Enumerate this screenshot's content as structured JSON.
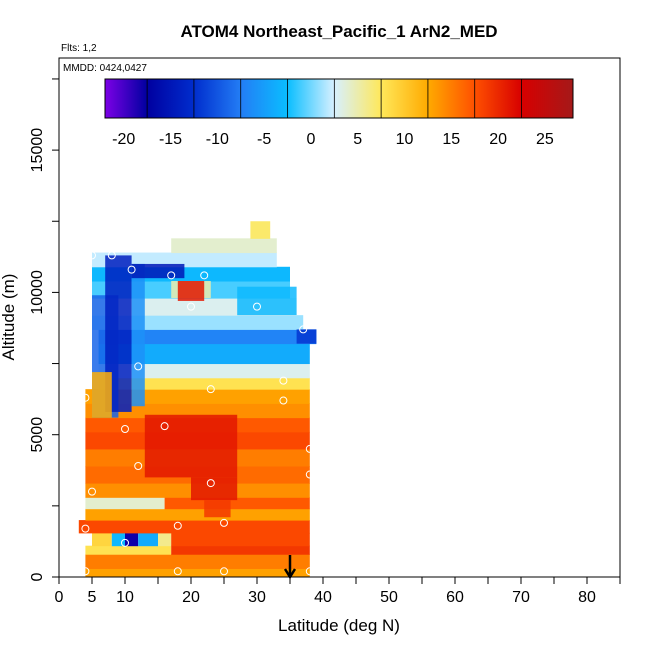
{
  "chart_data": {
    "type": "heatmap",
    "title": "ATOM4 Northeast_Pacific_1 ArN2_MED",
    "flights_label": "Flts: 1,2",
    "dates_label": "MMDD: 0424,0427",
    "xlabel": "Latitude (deg N)",
    "ylabel": "Altitude (m)",
    "xlim": [
      0,
      85
    ],
    "ylim": [
      0,
      17500
    ],
    "x_ticks": [
      0,
      5,
      10,
      20,
      30,
      40,
      50,
      60,
      70,
      80
    ],
    "y_ticks": [
      0,
      5000,
      10000,
      15000
    ],
    "colorbar": {
      "min": -22,
      "max": 28,
      "tick_values": [
        -20,
        -15,
        -10,
        -5,
        0,
        5,
        10,
        15,
        20,
        25
      ],
      "tick_labels": [
        "-20",
        "-15",
        "-10",
        "-5",
        "0",
        "5",
        "10",
        "15",
        "20",
        "25"
      ],
      "segment_edges": [
        -22,
        -17.5,
        -12.5,
        -7.5,
        -2.5,
        2.5,
        7.5,
        12.5,
        17.5,
        22.5,
        28
      ]
    },
    "bands": [
      {
        "y0": 0,
        "y1": 300,
        "x0": 4,
        "x1": 38,
        "v": 13
      },
      {
        "y0": 300,
        "y1": 800,
        "x0": 4,
        "x1": 38,
        "v": 15
      },
      {
        "y0": 800,
        "y1": 1100,
        "x0": 4,
        "x1": 17,
        "v": 8
      },
      {
        "y0": 800,
        "y1": 1100,
        "x0": 17,
        "x1": 38,
        "v": 19
      },
      {
        "y0": 1100,
        "y1": 1550,
        "x0": 5,
        "x1": 8,
        "v": 9
      },
      {
        "y0": 1100,
        "y1": 1550,
        "x0": 8,
        "x1": 10,
        "v": -3
      },
      {
        "y0": 1100,
        "y1": 1550,
        "x0": 10,
        "x1": 12,
        "v": -18
      },
      {
        "y0": 1100,
        "y1": 1550,
        "x0": 12,
        "x1": 15,
        "v": -4
      },
      {
        "y0": 1100,
        "y1": 1550,
        "x0": 15,
        "x1": 17,
        "v": 6
      },
      {
        "y0": 1100,
        "y1": 1550,
        "x0": 17,
        "x1": 38,
        "v": 18
      },
      {
        "y0": 1550,
        "y1": 2000,
        "x0": 3,
        "x1": 38,
        "v": 18
      },
      {
        "y0": 2000,
        "y1": 2400,
        "x0": 4,
        "x1": 38,
        "v": 13
      },
      {
        "y0": 2400,
        "y1": 2800,
        "x0": 4,
        "x1": 16,
        "v": 4
      },
      {
        "y0": 2400,
        "y1": 2800,
        "x0": 16,
        "x1": 38,
        "v": 17
      },
      {
        "y0": 2800,
        "y1": 3300,
        "x0": 4,
        "x1": 38,
        "v": 14
      },
      {
        "y0": 3300,
        "y1": 3900,
        "x0": 4,
        "x1": 38,
        "v": 16
      },
      {
        "y0": 3900,
        "y1": 4500,
        "x0": 4,
        "x1": 38,
        "v": 15
      },
      {
        "y0": 4500,
        "y1": 5100,
        "x0": 4,
        "x1": 38,
        "v": 18
      },
      {
        "y0": 5100,
        "y1": 5600,
        "x0": 4,
        "x1": 38,
        "v": 17
      },
      {
        "y0": 5600,
        "y1": 6100,
        "x0": 4,
        "x1": 38,
        "v": 14
      },
      {
        "y0": 6100,
        "y1": 6600,
        "x0": 4,
        "x1": 38,
        "v": 13
      },
      {
        "y0": 6600,
        "y1": 7000,
        "x0": 6,
        "x1": 38,
        "v": 8
      },
      {
        "y0": 7000,
        "y1": 7500,
        "x0": 6,
        "x1": 38,
        "v": 3
      },
      {
        "y0": 7500,
        "y1": 8200,
        "x0": 6,
        "x1": 38,
        "v": -4
      },
      {
        "y0": 8200,
        "y1": 8700,
        "x0": 6,
        "x1": 39,
        "v": -7
      },
      {
        "y0": 8700,
        "y1": 9200,
        "x0": 5,
        "x1": 37,
        "v": 1
      },
      {
        "y0": 9200,
        "y1": 9800,
        "x0": 5,
        "x1": 36,
        "v": 3
      },
      {
        "y0": 9800,
        "y1": 10400,
        "x0": 5,
        "x1": 35,
        "v": -1
      },
      {
        "y0": 10400,
        "y1": 10900,
        "x0": 5,
        "x1": 35,
        "v": -3
      },
      {
        "y0": 10900,
        "y1": 11400,
        "x0": 5,
        "x1": 33,
        "v": 2
      },
      {
        "y0": 11400,
        "y1": 11900,
        "x0": 17,
        "x1": 33,
        "v": 4
      },
      {
        "y0": 11900,
        "y1": 12500,
        "x0": 29,
        "x1": 32,
        "v": 7
      }
    ],
    "overlays": [
      {
        "y0": 5600,
        "y1": 9900,
        "x0": 5,
        "x1": 9,
        "v": -9
      },
      {
        "y0": 5800,
        "y1": 11300,
        "x0": 7,
        "x1": 11,
        "v": -14
      },
      {
        "y0": 6000,
        "y1": 11000,
        "x0": 11,
        "x1": 13,
        "v": -6
      },
      {
        "y0": 10500,
        "y1": 11000,
        "x0": 11,
        "x1": 19,
        "v": -15
      },
      {
        "y0": 9800,
        "y1": 10400,
        "x0": 17,
        "x1": 23,
        "v": 5
      },
      {
        "y0": 9700,
        "y1": 10400,
        "x0": 18,
        "x1": 22,
        "v": 21
      },
      {
        "y0": 3500,
        "y1": 5700,
        "x0": 13,
        "x1": 27,
        "v": 21
      },
      {
        "y0": 2700,
        "y1": 3500,
        "x0": 20,
        "x1": 27,
        "v": 21
      },
      {
        "y0": 2100,
        "y1": 2700,
        "x0": 22,
        "x1": 26,
        "v": 19
      },
      {
        "y0": 5600,
        "y1": 7200,
        "x0": 5,
        "x1": 8,
        "v": 12
      },
      {
        "y0": 9200,
        "y1": 10200,
        "x0": 27,
        "x1": 36,
        "v": -3
      },
      {
        "y0": 8200,
        "y1": 8700,
        "x0": 36,
        "x1": 39,
        "v": -12
      }
    ],
    "points": [
      {
        "x": 4,
        "y": 200
      },
      {
        "x": 18,
        "y": 200
      },
      {
        "x": 25,
        "y": 200
      },
      {
        "x": 38,
        "y": 200
      },
      {
        "x": 10,
        "y": 1200
      },
      {
        "x": 4,
        "y": 1700
      },
      {
        "x": 18,
        "y": 1800
      },
      {
        "x": 25,
        "y": 1900
      },
      {
        "x": 5,
        "y": 3000
      },
      {
        "x": 23,
        "y": 3300
      },
      {
        "x": 38,
        "y": 3600
      },
      {
        "x": 12,
        "y": 3900
      },
      {
        "x": 38,
        "y": 4500
      },
      {
        "x": 10,
        "y": 5200
      },
      {
        "x": 16,
        "y": 5300
      },
      {
        "x": 4,
        "y": 6300
      },
      {
        "x": 34,
        "y": 6200
      },
      {
        "x": 23,
        "y": 6600
      },
      {
        "x": 34,
        "y": 6900
      },
      {
        "x": 12,
        "y": 7400
      },
      {
        "x": 40,
        "y": 8400
      },
      {
        "x": 37,
        "y": 8700
      },
      {
        "x": 20,
        "y": 9500
      },
      {
        "x": 30,
        "y": 9500
      },
      {
        "x": 17,
        "y": 10600
      },
      {
        "x": 22,
        "y": 10600
      },
      {
        "x": 11,
        "y": 10800
      },
      {
        "x": 5,
        "y": 11300
      },
      {
        "x": 8,
        "y": 11300
      }
    ],
    "arrow_x": 35
  }
}
